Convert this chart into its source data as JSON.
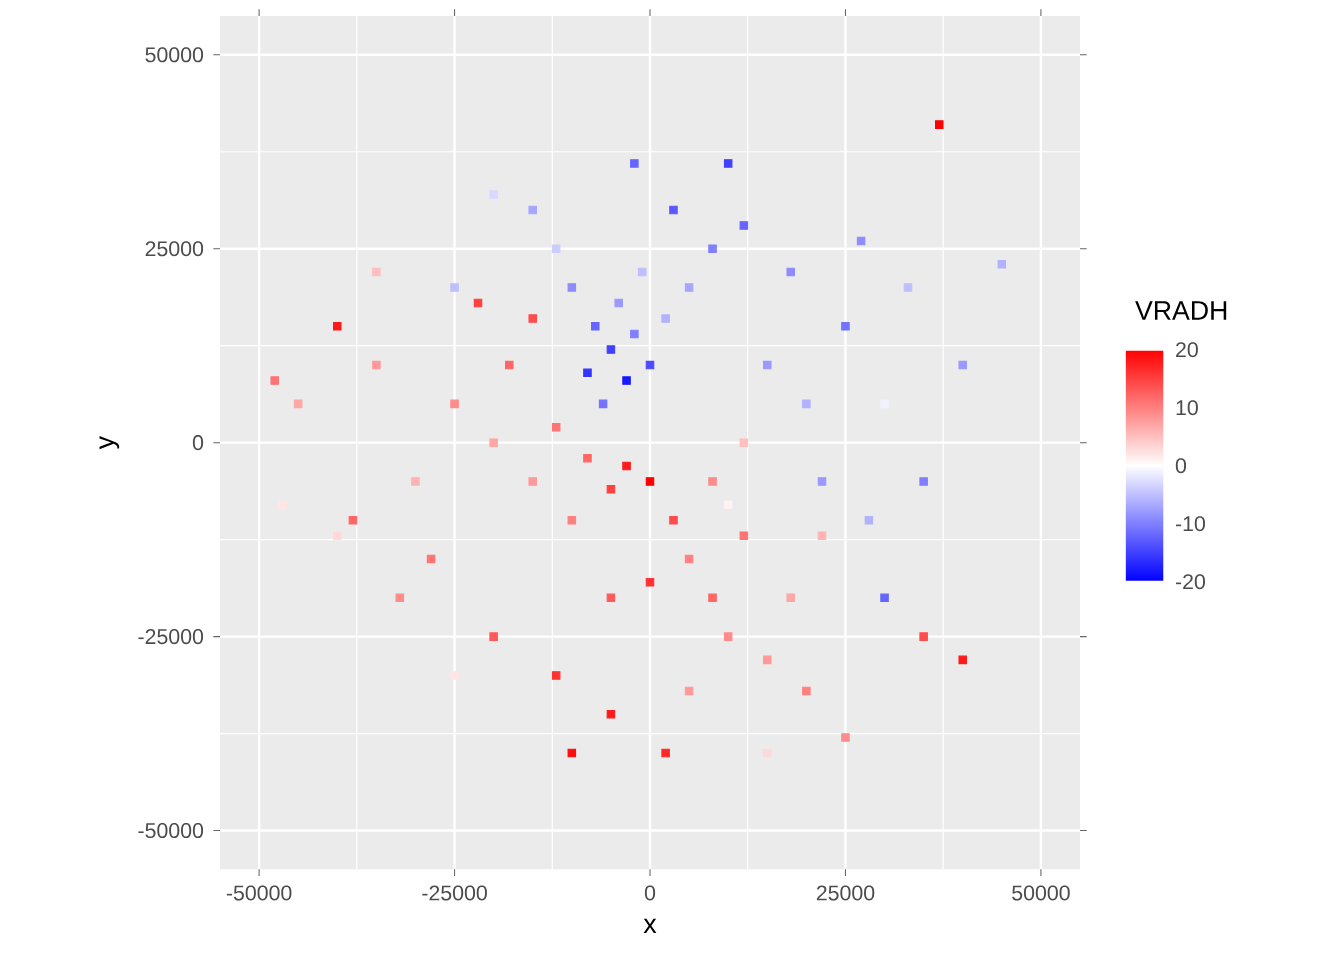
{
  "chart_data": {
    "type": "scatter",
    "xlabel": "x",
    "ylabel": "y",
    "clabel": "VRADH",
    "marker": "square",
    "grid": true,
    "xlim": [
      -55000,
      55000
    ],
    "ylim": [
      -55000,
      55000
    ],
    "xticks": [
      -50000,
      -25000,
      0,
      25000,
      50000
    ],
    "yticks": [
      -50000,
      -25000,
      0,
      25000,
      50000
    ],
    "clim": [
      -20,
      20
    ],
    "cticks": [
      -20,
      -10,
      0,
      10,
      20
    ],
    "x": [
      -5000,
      -3000,
      -7000,
      -2000,
      -8000,
      -4000,
      0,
      -6000,
      2000,
      -10000,
      -1000,
      5000,
      8000,
      12000,
      15000,
      20000,
      -12000,
      -15000,
      3000,
      18000,
      25000,
      22000,
      28000,
      30000,
      35000,
      -20000,
      10000,
      27000,
      33000,
      40000,
      45000,
      -25000,
      -2000,
      -3000,
      -5000,
      0,
      -8000,
      3000,
      5000,
      8000,
      10000,
      12000,
      15000,
      0,
      -5000,
      -10000,
      -15000,
      -20000,
      -18000,
      -22000,
      -15000,
      -25000,
      -30000,
      -28000,
      -20000,
      -12000,
      -5000,
      2000,
      5000,
      18000,
      20000,
      25000,
      -35000,
      -38000,
      -40000,
      -45000,
      -48000,
      -32000,
      22000,
      -10000,
      35000,
      40000,
      37000,
      -35000,
      8000,
      12000,
      -12000,
      -47000,
      -40000,
      30000,
      10000,
      -25000,
      15000
    ],
    "values": [
      12000,
      8000,
      15000,
      14000,
      9000,
      18000,
      10000,
      5000,
      16000,
      20000,
      22000,
      20000,
      25000,
      28000,
      10000,
      5000,
      25000,
      30000,
      30000,
      22000,
      15000,
      -5000,
      -10000,
      -20000,
      -5000,
      32000,
      36000,
      26000,
      20000,
      10000,
      23000,
      20000,
      36000,
      -3000,
      -6000,
      -5000,
      -2000,
      -10000,
      -15000,
      -20000,
      -25000,
      -12000,
      -28000,
      -18000,
      -20000,
      -10000,
      -5000,
      0,
      10000,
      18000,
      16000,
      5000,
      -5000,
      -15000,
      -25000,
      -30000,
      -35000,
      -40000,
      -32000,
      -20000,
      -32000,
      -38000,
      10000,
      -10000,
      15000,
      5000,
      8000,
      -20000,
      -12000,
      -40000,
      -25000,
      -28000,
      41000,
      22000,
      -5000,
      0,
      2000,
      -8000,
      -12000,
      5000,
      -8000,
      -30000,
      -40000
    ],
    "cvalues": [
      -15,
      -18,
      -12,
      -10,
      -16,
      -8,
      -14,
      -11,
      -6,
      -9,
      -5,
      -7,
      -10,
      -12,
      -8,
      -6,
      -4,
      -7,
      -13,
      -9,
      -11,
      -8,
      -6,
      -12,
      -10,
      -3,
      -15,
      -9,
      -5,
      -8,
      -6,
      -5,
      -12,
      18,
      15,
      20,
      12,
      14,
      10,
      12,
      9,
      11,
      8,
      16,
      13,
      10,
      8,
      7,
      12,
      15,
      14,
      9,
      6,
      11,
      13,
      16,
      18,
      17,
      8,
      7,
      10,
      9,
      8,
      12,
      18,
      7,
      11,
      9,
      6,
      19,
      14,
      18,
      20,
      5,
      9,
      5,
      11,
      2,
      3,
      -1,
      1,
      2,
      3
    ]
  }
}
